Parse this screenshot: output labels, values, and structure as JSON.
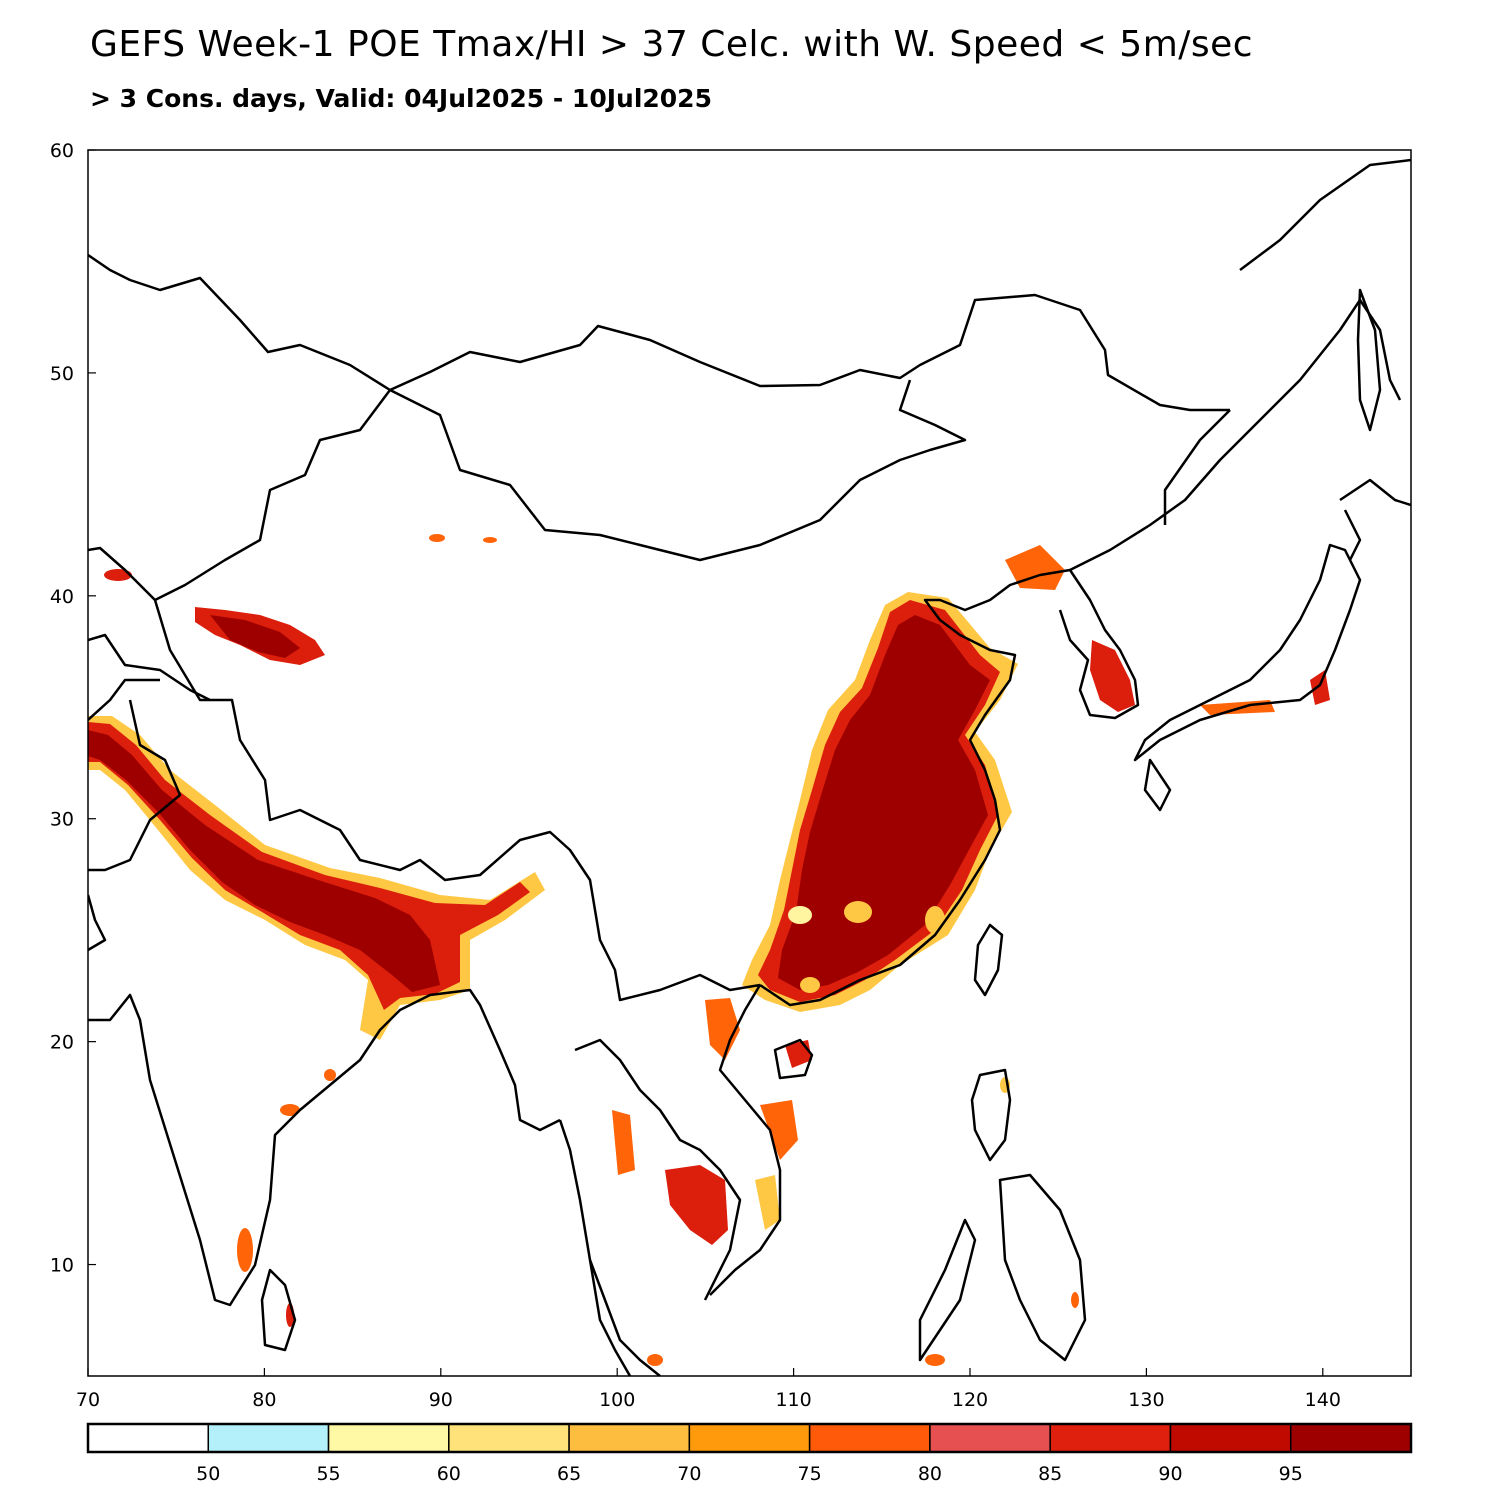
{
  "title": "GEFS Week-1 POE Tmax/HI > 37 Celc. with W. Speed < 5m/sec",
  "subtitle": "> 3 Cons. days, Valid: 04Jul2025 - 10Jul2025",
  "map": {
    "lon_range": [
      70,
      145
    ],
    "lat_range": [
      5,
      60
    ],
    "lon_ticks": [
      "70",
      "80",
      "90",
      "100",
      "110",
      "120",
      "130",
      "140"
    ],
    "lat_ticks": [
      "10",
      "20",
      "30",
      "40",
      "50",
      "60"
    ]
  },
  "colors": {
    "max": "#9e0000",
    "high": "#dc1e0c",
    "mid": "#ff6408",
    "low": "#ffc844",
    "edge": "#fff4a0",
    "ring": "#b4f0fa",
    "border": "#000000"
  },
  "legend": {
    "labels": [
      "50",
      "55",
      "60",
      "65",
      "70",
      "75",
      "80",
      "85",
      "90",
      "95"
    ],
    "colors": [
      "#ffffff",
      "#b4f0fa",
      "#fff8a4",
      "#ffe27a",
      "#fdbd3e",
      "#ff9a0c",
      "#ff5a0a",
      "#e65050",
      "#e0200e",
      "#c00a00",
      "#9e0000"
    ]
  }
}
